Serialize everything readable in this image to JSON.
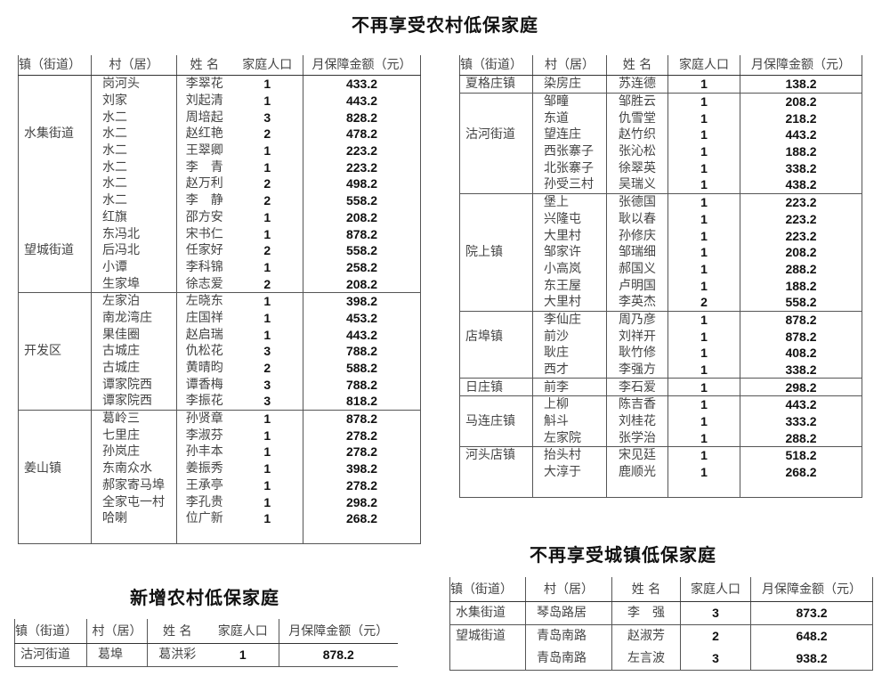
{
  "rural_removed": {
    "title": "不再享受农村低保家庭",
    "headers": [
      "镇（街道）",
      "村（居）",
      "姓 名",
      "家庭人口",
      "月保障金额（元）"
    ],
    "left_table": {
      "sections": [
        [
          {
            "town": "水集街道",
            "rows": [
              [
                "岗河头",
                "李翠花",
                "1",
                "433.2"
              ],
              [
                "刘家",
                "刘起清",
                "1",
                "443.2"
              ],
              [
                "水二",
                "周培起",
                "3",
                "828.2"
              ],
              [
                "水二",
                "赵红艳",
                "2",
                "478.2"
              ],
              [
                "水二",
                "王翠卿",
                "1",
                "223.2"
              ],
              [
                "水二",
                "李　青",
                "1",
                "223.2"
              ],
              [
                "水二",
                "赵万利",
                "2",
                "498.2"
              ],
              [
                "水二",
                "李　静",
                "2",
                "558.2"
              ]
            ]
          },
          {
            "town": "望城街道",
            "rows": [
              [
                "红旗",
                "邵方安",
                "1",
                "208.2"
              ],
              [
                "东冯北",
                "宋书仁",
                "1",
                "878.2"
              ],
              [
                "后冯北",
                "任家好",
                "2",
                "558.2"
              ],
              [
                "小谭",
                "李科锦",
                "1",
                "258.2"
              ],
              [
                "生家埠",
                "徐志爱",
                "2",
                "208.2"
              ]
            ]
          }
        ],
        [
          {
            "town": "开发区",
            "rows": [
              [
                "左家泊",
                "左晓东",
                "1",
                "398.2"
              ],
              [
                "南龙湾庄",
                "庄国祥",
                "1",
                "453.2"
              ],
              [
                "果佳圈",
                "赵启瑞",
                "1",
                "443.2"
              ],
              [
                "古城庄",
                "仇松花",
                "3",
                "788.2"
              ],
              [
                "古城庄",
                "黄晴昀",
                "2",
                "588.2"
              ],
              [
                "谭家院西",
                "谭香梅",
                "3",
                "788.2"
              ],
              [
                "谭家院西",
                "李振花",
                "3",
                "818.2"
              ]
            ]
          }
        ],
        [
          {
            "town": "姜山镇",
            "rows": [
              [
                "葛岭三",
                "孙贤章",
                "1",
                "878.2"
              ],
              [
                "七里庄",
                "李淑芬",
                "1",
                "278.2"
              ],
              [
                "孙岚庄",
                "孙丰本",
                "1",
                "278.2"
              ],
              [
                "东南众水",
                "姜振秀",
                "1",
                "398.2"
              ],
              [
                "郝家寄马埠",
                "王承亭",
                "1",
                "278.2"
              ],
              [
                "全家屯一村",
                "李孔贵",
                "1",
                "298.2"
              ],
              [
                "哈喇",
                "位广新",
                "1",
                "268.2"
              ]
            ]
          }
        ]
      ]
    },
    "right_table": {
      "sections": [
        [
          {
            "town": "夏格庄镇",
            "rows": [
              [
                "染房庄",
                "苏连德",
                "1",
                "138.2"
              ]
            ]
          }
        ],
        [
          {
            "town": "沽河街道",
            "rows": [
              [
                "邹疃",
                "邹胜云",
                "1",
                "208.2"
              ],
              [
                "东道",
                "仇雪堂",
                "1",
                "218.2"
              ],
              [
                "望连庄",
                "赵竹织",
                "1",
                "443.2"
              ],
              [
                "西张寨子",
                "张沁松",
                "1",
                "188.2"
              ],
              [
                "北张寨子",
                "徐翠英",
                "1",
                "338.2"
              ],
              [
                "孙受三村",
                "吴瑞义",
                "1",
                "438.2"
              ]
            ]
          }
        ],
        [
          {
            "town": "院上镇",
            "rows": [
              [
                "堡上",
                "张德国",
                "1",
                "223.2"
              ],
              [
                "兴隆屯",
                "耿以春",
                "1",
                "223.2"
              ],
              [
                "大里村",
                "孙修庆",
                "1",
                "223.2"
              ],
              [
                "邹家许",
                "邹瑞细",
                "1",
                "208.2"
              ],
              [
                "小高岚",
                "郝国义",
                "1",
                "288.2"
              ],
              [
                "东王屋",
                "卢明国",
                "1",
                "188.2"
              ],
              [
                "大里村",
                "李英杰",
                "2",
                "558.2"
              ]
            ]
          }
        ],
        [
          {
            "town": "店埠镇",
            "rows": [
              [
                "李仙庄",
                "周乃彦",
                "1",
                "878.2"
              ],
              [
                "前沙",
                "刘祥开",
                "1",
                "878.2"
              ],
              [
                "耿庄",
                "耿竹修",
                "1",
                "408.2"
              ],
              [
                "西才",
                "李强方",
                "1",
                "338.2"
              ]
            ]
          }
        ],
        [
          {
            "town": "日庄镇",
            "rows": [
              [
                "前李",
                "李石爱",
                "1",
                "298.2"
              ]
            ]
          }
        ],
        [
          {
            "town": "马连庄镇",
            "rows": [
              [
                "上柳",
                "陈吉香",
                "1",
                "443.2"
              ],
              [
                "斛斗",
                "刘桂花",
                "1",
                "333.2"
              ],
              [
                "左家院",
                "张学治",
                "1",
                "288.2"
              ]
            ]
          }
        ],
        [
          {
            "town": "河头店镇",
            "rows": [
              [
                "抬头村",
                "宋见廷",
                "1",
                "518.2"
              ],
              [
                "大淳于",
                "鹿顺光",
                "1",
                "268.2"
              ]
            ]
          }
        ]
      ]
    }
  },
  "rural_added": {
    "title": "新增农村低保家庭",
    "headers": [
      "镇（街道）",
      "村（居）",
      "姓 名",
      "家庭人口",
      "月保障金额（元）"
    ],
    "sections": [
      [
        {
          "town": "沽河街道",
          "rows": [
            [
              "葛埠",
              "葛洪彩",
              "1",
              "878.2"
            ]
          ]
        }
      ]
    ]
  },
  "urban_removed": {
    "title": "不再享受城镇低保家庭",
    "headers": [
      "镇（街道）",
      "村（居）",
      "姓 名",
      "家庭人口",
      "月保障金额（元）"
    ],
    "sections": [
      [
        {
          "town": "水集街道",
          "rows": [
            [
              "琴岛路居",
              "李　强",
              "3",
              "873.2"
            ]
          ]
        }
      ],
      [
        {
          "town": "望城街道",
          "rows": [
            [
              "青岛南路",
              "赵淑芳",
              "2",
              "648.2"
            ],
            [
              "青岛南路",
              "左言波",
              "3",
              "938.2"
            ]
          ]
        }
      ]
    ]
  }
}
